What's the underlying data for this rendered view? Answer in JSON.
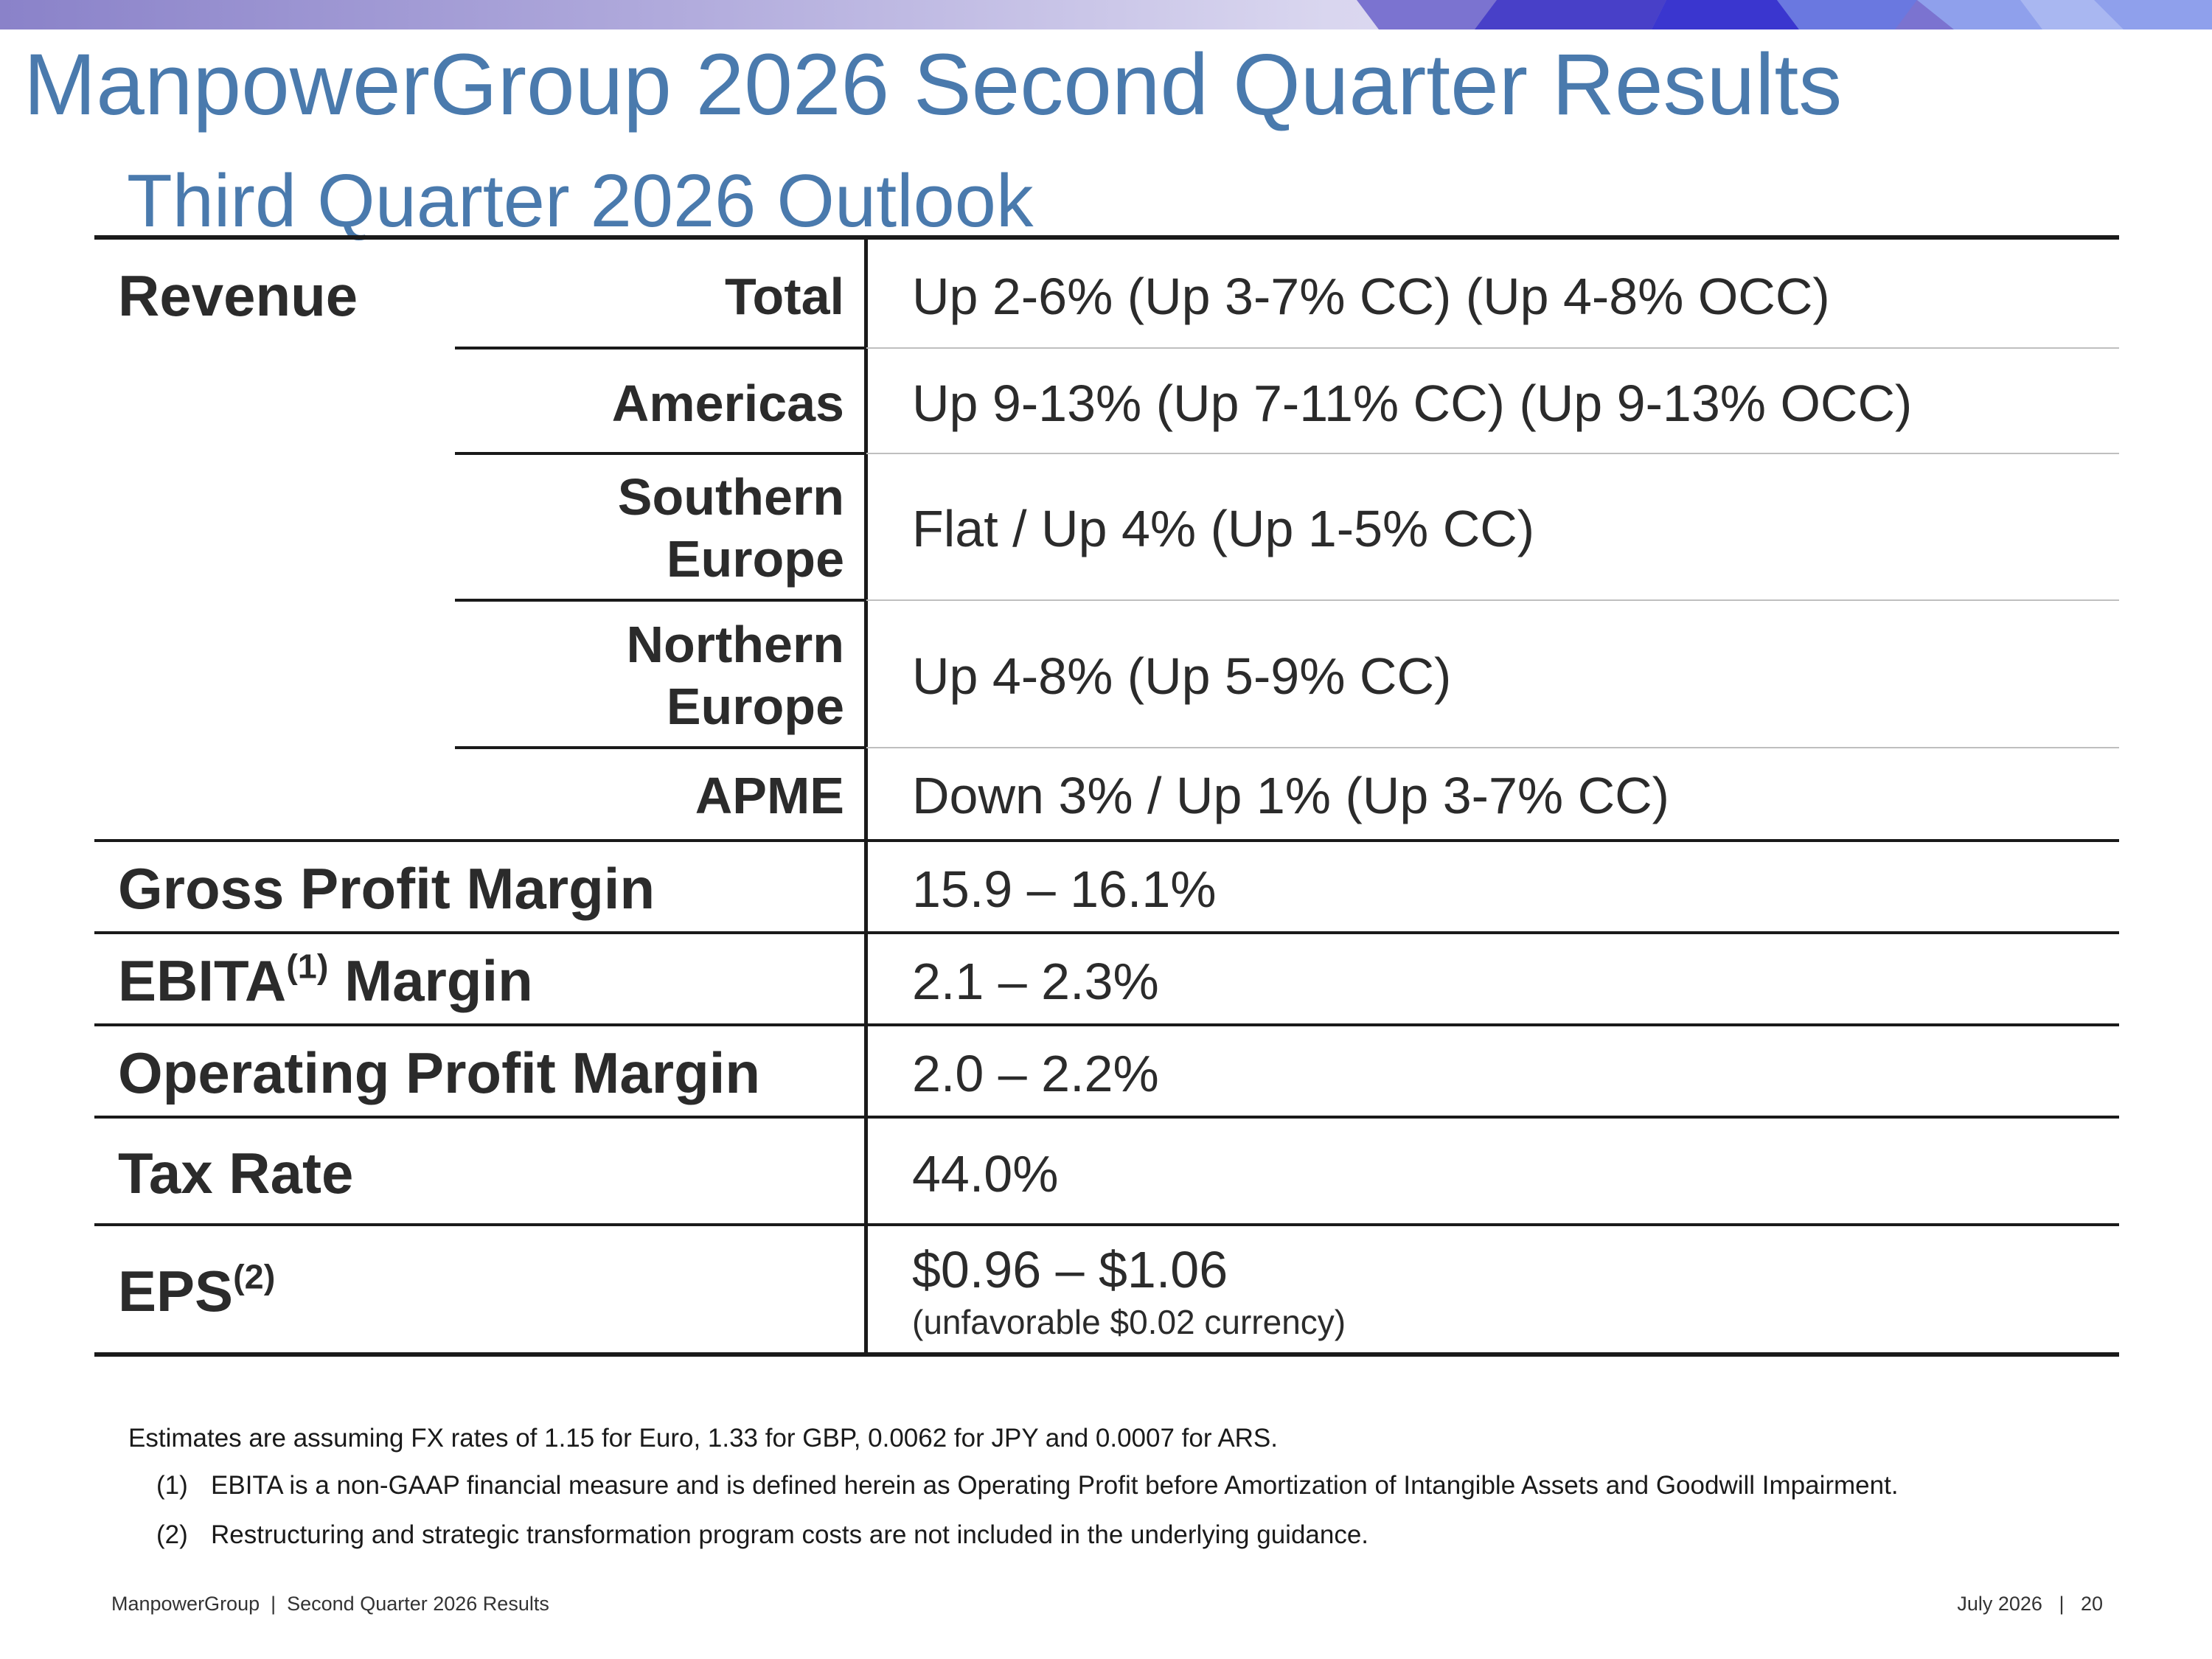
{
  "header": {
    "title": "ManpowerGroup 2026 Second Quarter Results",
    "subtitle": "Third Quarter 2026 Outlook"
  },
  "table": {
    "revenue_label": "Revenue",
    "revenue_rows": [
      {
        "region": "Total",
        "value": "Up 2-6% (Up 3-7% CC) (Up 4-8% OCC)"
      },
      {
        "region": "Americas",
        "value": "Up 9-13% (Up 7-11% CC) (Up 9-13% OCC)"
      },
      {
        "region_line1": "Southern",
        "region_line2": "Europe",
        "value": "Flat / Up 4% (Up 1-5% CC)"
      },
      {
        "region_line1": "Northern",
        "region_line2": "Europe",
        "value": "Up 4-8% (Up 5-9% CC)"
      },
      {
        "region": "APME",
        "value": "Down 3% / Up 1% (Up 3-7% CC)"
      }
    ],
    "gross_profit": {
      "label": "Gross Profit Margin",
      "value": "15.9 – 16.1%"
    },
    "ebita": {
      "label": "EBITA",
      "sup": "(1)",
      "label_suffix": " Margin",
      "value": "2.1 – 2.3%"
    },
    "operating_profit": {
      "label": "Operating Profit Margin",
      "value": "2.0 – 2.2%"
    },
    "tax_rate": {
      "label": "Tax Rate",
      "value": "44.0%"
    },
    "eps": {
      "label": "EPS",
      "sup": "(2)",
      "value": "$0.96 – $1.06",
      "note": "(unfavorable $0.02 currency)"
    }
  },
  "footnotes": {
    "intro": "Estimates are assuming FX rates of 1.15 for Euro, 1.33 for GBP, 0.0062 for JPY and 0.0007 for ARS.",
    "items": [
      {
        "marker": "(1)",
        "text": "EBITA is a non-GAAP financial measure and is defined herein as Operating Profit before Amortization of Intangible Assets and Goodwill Impairment."
      },
      {
        "marker": "(2)",
        "text": "Restructuring and strategic transformation program costs are not included in the underlying guidance."
      }
    ]
  },
  "footer": {
    "left": "ManpowerGroup  |  Second Quarter 2026 Results",
    "right": "July 2026   |   20"
  },
  "colors": {
    "title": "#4a7aad",
    "text": "#2b2b2b",
    "band": "#8a82c9"
  }
}
